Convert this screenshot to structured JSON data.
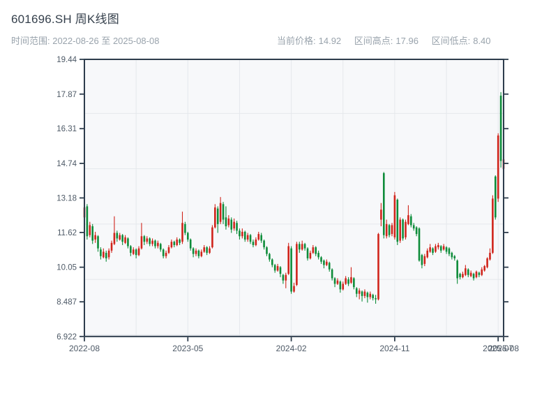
{
  "header": {
    "title": "601696.SH 周K线图",
    "subtitle": "时间范围: 2022-08-26 至 2025-08-08",
    "stats": {
      "current": {
        "label": "当前价格:",
        "value": "14.92"
      },
      "high": {
        "label": "区间高点:",
        "value": "17.96"
      },
      "low": {
        "label": "区间低点:",
        "value": "8.40"
      }
    }
  },
  "chart_data": {
    "type": "candlestick",
    "title": "601696.SH 周K线图",
    "symbol": "601696.SH",
    "period": "weekly",
    "date_range": [
      "2022-08-26",
      "2025-08-08"
    ],
    "current_price": 14.92,
    "range_high": 17.96,
    "range_low": 8.4,
    "ylim": [
      6.922,
      19.44
    ],
    "y_tick_labels": [
      "19.44",
      "17.87",
      "16.31",
      "14.74",
      "13.18",
      "11.62",
      "10.05",
      "8.487",
      "6.922"
    ],
    "y_tick_values": [
      19.44,
      17.87,
      16.31,
      14.74,
      13.18,
      11.62,
      10.05,
      8.487,
      6.922
    ],
    "x_ticks": [
      {
        "label": "2022-08",
        "index": 0
      },
      {
        "label": "2023-05",
        "index": 38
      },
      {
        "label": "2024-02",
        "index": 76
      },
      {
        "label": "2024-11",
        "index": 114
      },
      {
        "label": "2025-07",
        "index": 152
      },
      {
        "label": "2025-08",
        "index": 154
      }
    ],
    "x_grid_indices": [
      19,
      38,
      57,
      76,
      95,
      114,
      133,
      152
    ],
    "y_grid_values": [
      17,
      14.5,
      12,
      9.5,
      7
    ],
    "up_color": "#d0241b",
    "down_color": "#0e8c3a",
    "plot_bg": "#f7f8fa",
    "grid_color": "#e5e8ec",
    "spine_color": "#2d3c4c",
    "tick_label_color": "#4d5966",
    "candles_ohlc": [
      [
        12.3,
        12.95,
        12.2,
        12.75
      ],
      [
        12.8,
        12.9,
        11.3,
        11.45
      ],
      [
        11.5,
        12.1,
        11.4,
        11.95
      ],
      [
        11.9,
        12.0,
        11.1,
        11.25
      ],
      [
        11.3,
        11.65,
        11.15,
        11.5
      ],
      [
        11.45,
        11.5,
        10.75,
        10.9
      ],
      [
        10.85,
        10.95,
        10.4,
        10.55
      ],
      [
        10.5,
        10.9,
        10.45,
        10.75
      ],
      [
        10.7,
        10.8,
        10.3,
        10.45
      ],
      [
        10.5,
        10.9,
        10.4,
        10.8
      ],
      [
        10.8,
        11.25,
        10.7,
        11.15
      ],
      [
        11.1,
        12.35,
        11.05,
        11.6
      ],
      [
        11.6,
        11.7,
        11.2,
        11.35
      ],
      [
        11.3,
        11.6,
        11.25,
        11.5
      ],
      [
        11.5,
        11.55,
        11.05,
        11.2
      ],
      [
        11.15,
        11.5,
        11.1,
        11.4
      ],
      [
        11.35,
        11.4,
        10.9,
        11.0
      ],
      [
        11.0,
        11.05,
        10.55,
        10.7
      ],
      [
        10.65,
        10.95,
        10.6,
        10.85
      ],
      [
        10.85,
        10.9,
        10.45,
        10.6
      ],
      [
        10.6,
        11.0,
        10.55,
        10.9
      ],
      [
        10.9,
        12.05,
        10.85,
        11.45
      ],
      [
        11.45,
        11.5,
        11.05,
        11.2
      ],
      [
        11.2,
        11.45,
        11.1,
        11.35
      ],
      [
        11.35,
        11.4,
        11.0,
        11.1
      ],
      [
        11.1,
        11.35,
        11.0,
        11.25
      ],
      [
        11.25,
        11.3,
        10.9,
        11.0
      ],
      [
        11.0,
        11.25,
        10.9,
        11.15
      ],
      [
        11.1,
        11.15,
        10.75,
        10.85
      ],
      [
        10.85,
        10.9,
        10.45,
        10.55
      ],
      [
        10.55,
        10.8,
        10.45,
        10.7
      ],
      [
        10.7,
        11.05,
        10.65,
        10.95
      ],
      [
        10.95,
        11.3,
        10.9,
        11.2
      ],
      [
        11.2,
        11.25,
        10.95,
        11.05
      ],
      [
        11.05,
        11.4,
        11.0,
        11.3
      ],
      [
        11.3,
        11.35,
        11.05,
        11.15
      ],
      [
        11.2,
        12.56,
        11.1,
        12.05
      ],
      [
        12.0,
        12.1,
        11.5,
        11.6
      ],
      [
        11.6,
        11.65,
        11.2,
        11.3
      ],
      [
        11.3,
        11.35,
        10.8,
        10.9
      ],
      [
        10.9,
        10.95,
        10.5,
        10.65
      ],
      [
        10.65,
        10.9,
        10.55,
        10.8
      ],
      [
        10.8,
        10.85,
        10.45,
        10.55
      ],
      [
        10.55,
        10.85,
        10.5,
        10.75
      ],
      [
        10.75,
        11.05,
        10.7,
        10.95
      ],
      [
        10.95,
        11.0,
        10.6,
        10.7
      ],
      [
        10.7,
        11.0,
        10.65,
        10.9
      ],
      [
        10.95,
        11.95,
        10.9,
        11.85
      ],
      [
        11.85,
        12.9,
        11.8,
        12.75
      ],
      [
        12.7,
        12.8,
        11.6,
        12.0
      ],
      [
        12.1,
        13.22,
        12.0,
        12.95
      ],
      [
        12.9,
        13.0,
        12.0,
        12.2
      ],
      [
        12.3,
        12.8,
        11.75,
        11.9
      ],
      [
        11.95,
        12.4,
        11.85,
        12.25
      ],
      [
        12.2,
        12.3,
        11.6,
        11.75
      ],
      [
        11.8,
        12.25,
        11.7,
        12.1
      ],
      [
        12.05,
        12.15,
        11.55,
        11.7
      ],
      [
        11.7,
        11.8,
        11.3,
        11.45
      ],
      [
        11.45,
        11.8,
        11.35,
        11.65
      ],
      [
        11.65,
        11.7,
        11.2,
        11.3
      ],
      [
        11.3,
        11.6,
        11.2,
        11.5
      ],
      [
        11.5,
        11.55,
        11.1,
        11.2
      ],
      [
        11.2,
        11.3,
        10.95,
        11.05
      ],
      [
        11.05,
        11.4,
        11.0,
        11.3
      ],
      [
        11.3,
        11.65,
        11.25,
        11.55
      ],
      [
        11.5,
        11.6,
        11.15,
        11.25
      ],
      [
        11.25,
        11.3,
        10.85,
        10.95
      ],
      [
        10.95,
        11.0,
        10.55,
        10.65
      ],
      [
        10.65,
        10.7,
        10.3,
        10.4
      ],
      [
        10.4,
        10.45,
        10.05,
        10.15
      ],
      [
        10.15,
        10.2,
        9.8,
        9.9
      ],
      [
        9.9,
        10.2,
        9.85,
        10.1
      ],
      [
        10.05,
        10.1,
        9.6,
        9.75
      ],
      [
        9.7,
        9.75,
        9.3,
        9.45
      ],
      [
        9.45,
        9.8,
        9.1,
        9.7
      ],
      [
        9.75,
        11.15,
        9.7,
        11.0
      ],
      [
        10.9,
        11.0,
        8.85,
        8.95
      ],
      [
        8.95,
        9.35,
        8.9,
        9.2
      ],
      [
        9.25,
        11.2,
        9.2,
        11.1
      ],
      [
        11.1,
        11.2,
        10.7,
        10.85
      ],
      [
        10.85,
        11.25,
        10.8,
        11.1
      ],
      [
        11.1,
        11.15,
        10.8,
        10.9
      ],
      [
        10.9,
        10.95,
        10.35,
        10.45
      ],
      [
        10.45,
        10.8,
        10.4,
        10.7
      ],
      [
        10.7,
        11.05,
        10.65,
        10.95
      ],
      [
        10.95,
        11.0,
        10.55,
        10.65
      ],
      [
        10.7,
        10.8,
        10.4,
        10.5
      ],
      [
        10.5,
        10.55,
        10.2,
        10.3
      ],
      [
        10.35,
        10.4,
        10.0,
        10.15
      ],
      [
        10.15,
        10.4,
        10.1,
        10.3
      ],
      [
        10.25,
        10.3,
        9.85,
        9.95
      ],
      [
        9.95,
        10.0,
        9.45,
        9.55
      ],
      [
        9.55,
        9.6,
        9.15,
        9.3
      ],
      [
        9.3,
        9.55,
        9.25,
        9.45
      ],
      [
        9.4,
        9.45,
        8.9,
        9.05
      ],
      [
        9.05,
        9.4,
        9.0,
        9.3
      ],
      [
        9.3,
        9.65,
        9.25,
        9.55
      ],
      [
        9.5,
        9.6,
        9.2,
        9.3
      ],
      [
        9.35,
        10.05,
        9.3,
        9.6
      ],
      [
        9.55,
        9.6,
        9.05,
        9.15
      ],
      [
        9.1,
        9.15,
        8.7,
        8.85
      ],
      [
        8.85,
        9.1,
        8.6,
        9.0
      ],
      [
        8.95,
        9.0,
        8.5,
        8.75
      ],
      [
        8.75,
        9.05,
        8.65,
        8.95
      ],
      [
        8.9,
        8.95,
        8.45,
        8.7
      ],
      [
        8.7,
        8.95,
        8.6,
        8.85
      ],
      [
        8.8,
        8.85,
        8.55,
        8.65
      ],
      [
        8.65,
        8.8,
        8.4,
        8.6
      ],
      [
        8.6,
        11.6,
        8.55,
        11.55
      ],
      [
        12.2,
        12.95,
        11.9,
        12.65
      ],
      [
        14.3,
        14.35,
        11.35,
        11.5
      ],
      [
        11.45,
        12.2,
        11.35,
        12.0
      ],
      [
        11.95,
        12.0,
        11.4,
        11.5
      ],
      [
        11.55,
        12.05,
        11.45,
        11.95
      ],
      [
        11.4,
        13.45,
        11.3,
        13.3
      ],
      [
        13.1,
        13.15,
        11.05,
        11.2
      ],
      [
        11.25,
        12.3,
        11.15,
        12.2
      ],
      [
        12.2,
        12.25,
        11.25,
        11.35
      ],
      [
        11.4,
        12.2,
        11.3,
        12.1
      ],
      [
        12.0,
        12.85,
        11.95,
        12.4
      ],
      [
        12.35,
        12.45,
        11.85,
        11.95
      ],
      [
        11.95,
        12.05,
        11.7,
        11.8
      ],
      [
        11.85,
        11.9,
        11.45,
        11.55
      ],
      [
        11.8,
        11.85,
        10.3,
        10.35
      ],
      [
        10.6,
        10.65,
        10.0,
        10.15
      ],
      [
        10.2,
        10.65,
        10.1,
        10.55
      ],
      [
        10.5,
        10.9,
        10.45,
        10.8
      ],
      [
        10.75,
        11.1,
        10.7,
        10.95
      ],
      [
        10.9,
        10.95,
        10.6,
        10.7
      ],
      [
        10.75,
        11.1,
        10.7,
        11.0
      ],
      [
        10.95,
        11.15,
        10.85,
        11.05
      ],
      [
        11.0,
        11.05,
        10.7,
        10.8
      ],
      [
        10.85,
        11.1,
        10.8,
        11.0
      ],
      [
        10.95,
        11.0,
        10.65,
        10.75
      ],
      [
        10.9,
        10.95,
        10.55,
        10.65
      ],
      [
        10.7,
        10.75,
        10.4,
        10.5
      ],
      [
        10.55,
        10.6,
        10.35,
        10.45
      ],
      [
        10.35,
        10.4,
        9.3,
        9.55
      ],
      [
        9.75,
        9.8,
        9.5,
        9.6
      ],
      [
        9.6,
        9.85,
        9.55,
        9.75
      ],
      [
        9.7,
        10.15,
        9.65,
        10.0
      ],
      [
        9.95,
        10.0,
        9.6,
        9.7
      ],
      [
        9.65,
        9.9,
        9.6,
        9.8
      ],
      [
        9.75,
        9.8,
        9.45,
        9.55
      ],
      [
        9.6,
        9.9,
        9.55,
        9.85
      ],
      [
        9.8,
        9.85,
        9.6,
        9.7
      ],
      [
        9.7,
        10.05,
        9.65,
        9.95
      ],
      [
        9.9,
        10.15,
        9.85,
        10.1
      ],
      [
        10.05,
        10.5,
        10.0,
        10.45
      ],
      [
        10.4,
        10.9,
        10.35,
        10.7
      ],
      [
        10.7,
        13.3,
        10.65,
        13.15
      ],
      [
        14.15,
        14.2,
        12.2,
        12.3
      ],
      [
        13.15,
        16.1,
        13.0,
        16.0
      ],
      [
        17.8,
        17.96,
        14.55,
        14.85
      ],
      [
        14.5,
        15.3,
        14.1,
        14.92
      ]
    ]
  }
}
